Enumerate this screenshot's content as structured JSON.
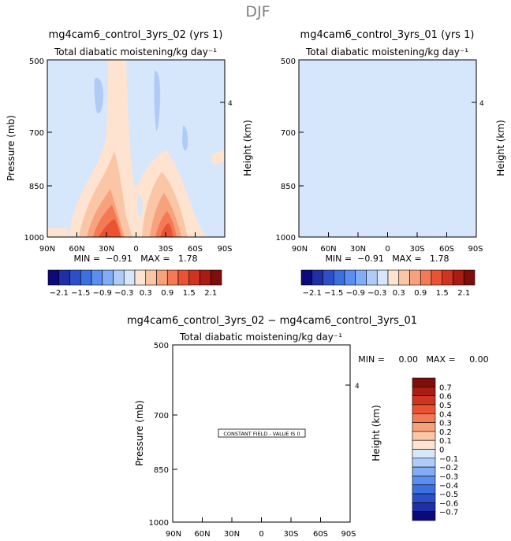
{
  "figure": {
    "season": "DJF",
    "diff_title": "mg4cam6_control_3yrs_02 − mg4cam6_control_3yrs_01"
  },
  "panels": [
    {
      "id": "left",
      "title": "mg4cam6_control_3yrs_02 (yrs 1)",
      "subtitle": "Total diabatic moistening/kg day⁻¹",
      "stats": "MIN =  −0.91   MAX =   1.78"
    },
    {
      "id": "right",
      "title": "mg4cam6_control_3yrs_01 (yrs 1)",
      "subtitle": "Total diabatic moistening/kg day⁻¹",
      "stats": "MIN =  −0.91   MAX =   1.78"
    },
    {
      "id": "diff",
      "title": "",
      "subtitle": "Total diabatic moistening/kg day⁻¹",
      "stats": "MIN =     0.00   MAX =     0.00"
    }
  ],
  "axes": {
    "ylabel_left": "Pressure (mb)",
    "ylabel_right": "Height (km)",
    "yticks": [
      "500",
      "700",
      "850",
      "1000"
    ],
    "xticks": [
      "90N",
      "60N",
      "30N",
      "0",
      "30S",
      "60S",
      "90S"
    ],
    "height_tick": "4"
  },
  "diff_panel": {
    "note": "CONSTANT FIELD - VALUE IS 0"
  },
  "colorbar_top": {
    "colors": [
      "#0a0a7a",
      "#1f2fa6",
      "#2d50c8",
      "#3a70e0",
      "#5a8ef0",
      "#82acf5",
      "#afcbf7",
      "#d6e6fb",
      "#fde3d0",
      "#fbc6a6",
      "#f8a27d",
      "#f37a55",
      "#e95334",
      "#cf3420",
      "#a81c14",
      "#7e0e0a"
    ],
    "labels": [
      "−2.1",
      "−1.5",
      "−0.9",
      "−0.3",
      "0.3",
      "0.9",
      "1.5",
      "2.1"
    ]
  },
  "colorbar_diff": {
    "colors": [
      "#7e0e0a",
      "#a81c14",
      "#cf3420",
      "#e95334",
      "#f37a55",
      "#f8a27d",
      "#fbc6a6",
      "#fde3d0",
      "#d6e6fb",
      "#afcbf7",
      "#82acf5",
      "#5a8ef0",
      "#3a70e0",
      "#2d50c8",
      "#1f2fa6",
      "#0a0a7a"
    ],
    "labels": [
      "0.7",
      "0.6",
      "0.5",
      "0.4",
      "0.3",
      "0.2",
      "0.1",
      "0",
      "−0.1",
      "−0.2",
      "−0.3",
      "−0.4",
      "−0.5",
      "−0.6",
      "−0.7"
    ]
  },
  "chart_data": {
    "type": "heatmap",
    "variable": "Total diabatic moistening",
    "units": "kg day⁻¹",
    "x_axis": [
      "90N",
      "60N",
      "30N",
      "0",
      "30S",
      "60S",
      "90S"
    ],
    "y_axis_pressure_mb": [
      500,
      700,
      850,
      1000
    ],
    "contour_levels": [
      -2.1,
      -1.5,
      -0.9,
      -0.3,
      0.3,
      0.9,
      1.5,
      2.1
    ],
    "panels": [
      {
        "name": "mg4cam6_control_3yrs_02 (yrs 1)",
        "min": -0.91,
        "max": 1.78
      },
      {
        "name": "mg4cam6_control_3yrs_01 (yrs 1)",
        "min": -0.91,
        "max": 1.78
      },
      {
        "name": "mg4cam6_control_3yrs_02 − mg4cam6_control_3yrs_01",
        "min": 0.0,
        "max": 0.0,
        "constant_value": 0
      }
    ]
  }
}
